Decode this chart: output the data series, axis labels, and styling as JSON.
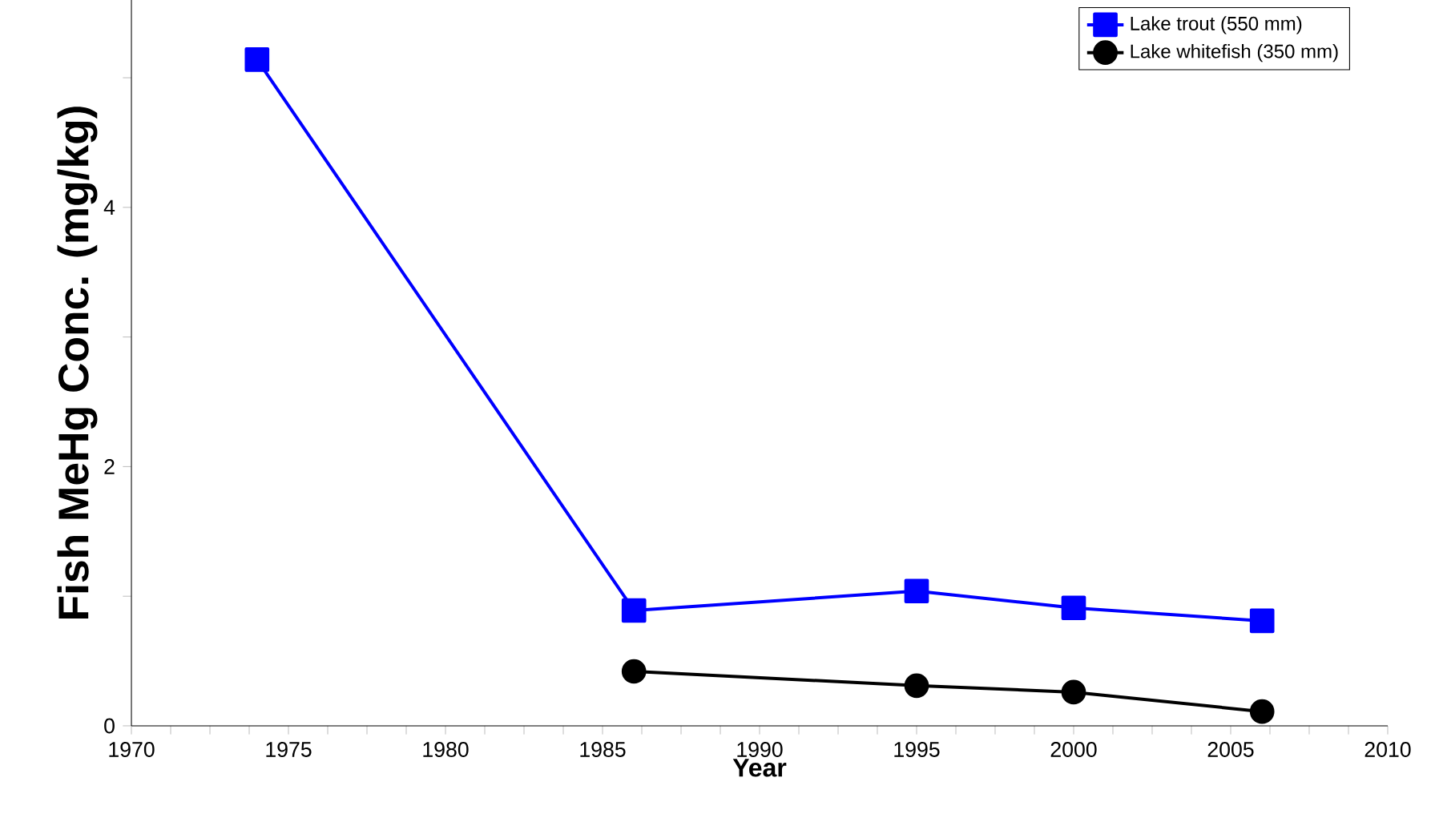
{
  "chart_data": {
    "type": "line",
    "xlabel": "Year",
    "ylabel": "Fish MeHg Conc. (mg/kg)",
    "series": [
      {
        "name": "Lake trout (550 mm)",
        "color": "#0000ff",
        "marker": "square",
        "x": [
          1974,
          1986,
          1995,
          2000,
          2006
        ],
        "values": [
          5.14,
          0.89,
          1.04,
          0.91,
          0.81
        ]
      },
      {
        "name": "Lake whitefish (350 mm)",
        "color": "#000000",
        "marker": "circle",
        "x": [
          1986,
          1995,
          2000,
          2006
        ],
        "values": [
          0.42,
          0.31,
          0.26,
          0.11
        ]
      }
    ],
    "xlim": [
      1970,
      2010
    ],
    "ylim": [
      0,
      5.6
    ],
    "xticks": [
      1970,
      {
        "value": 1971.25,
        "label": null
      },
      {
        "value": 1972.5,
        "label": null
      },
      {
        "value": 1973.75,
        "label": null
      },
      1975,
      {
        "value": 1976.25,
        "label": null
      },
      {
        "value": 1977.5,
        "label": null
      },
      {
        "value": 1978.75,
        "label": null
      },
      1980,
      {
        "value": 1981.25,
        "label": null
      },
      {
        "value": 1982.5,
        "label": null
      },
      {
        "value": 1983.75,
        "label": null
      },
      1985,
      {
        "value": 1986.25,
        "label": null
      },
      {
        "value": 1987.5,
        "label": null
      },
      {
        "value": 1988.75,
        "label": null
      },
      1990,
      {
        "value": 1991.25,
        "label": null
      },
      {
        "value": 1992.5,
        "label": null
      },
      {
        "value": 1993.75,
        "label": null
      },
      1995,
      {
        "value": 1996.25,
        "label": null
      },
      {
        "value": 1997.5,
        "label": null
      },
      {
        "value": 1998.75,
        "label": null
      },
      2000,
      {
        "value": 2001.25,
        "label": null
      },
      {
        "value": 2002.5,
        "label": null
      },
      {
        "value": 2003.75,
        "label": null
      },
      2005,
      {
        "value": 2006.25,
        "label": null
      },
      {
        "value": 2007.5,
        "label": null
      },
      {
        "value": 2008.75,
        "label": null
      },
      2010
    ],
    "yticks": [
      0,
      {
        "value": 1,
        "label": null
      },
      2,
      {
        "value": 3,
        "label": null
      },
      4,
      {
        "value": 5,
        "label": null
      }
    ],
    "legend": "top right",
    "grid": false,
    "line_style": "solid"
  }
}
